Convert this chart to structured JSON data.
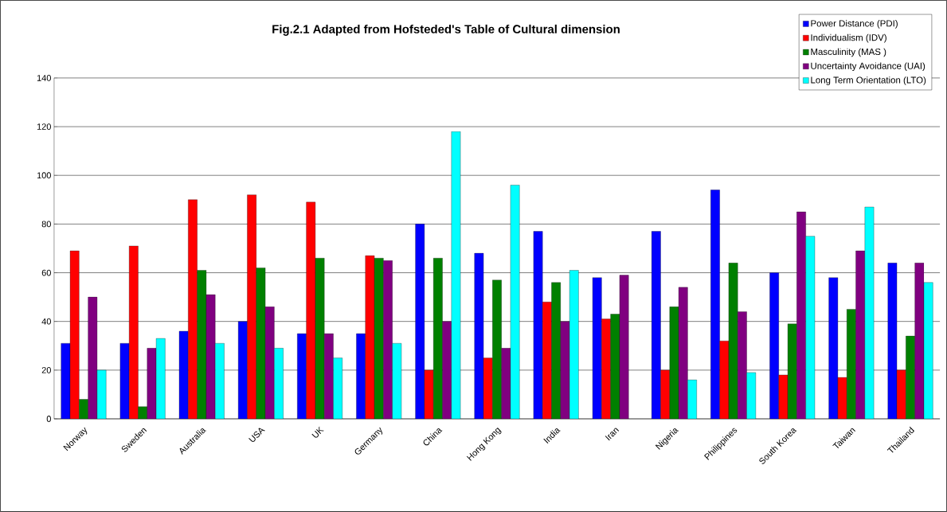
{
  "chart_data": {
    "type": "bar",
    "title": "Fig.2.1    Adapted from Hofsteded's Table of Cultural dimension",
    "categories": [
      "Norway",
      "Sweden",
      "Australia",
      "USA",
      "UK",
      "Germany",
      "China",
      "Hong Kong",
      "India",
      "Iran",
      "Nigeria",
      "Philippines",
      "South Korea",
      "Taiwan",
      "Thailand"
    ],
    "series": [
      {
        "name": "Power Distance (PDI)",
        "color": "#0000ff",
        "values": [
          31,
          31,
          36,
          40,
          35,
          35,
          80,
          68,
          77,
          58,
          77,
          94,
          60,
          58,
          64
        ]
      },
      {
        "name": "Individualism (IDV)",
        "color": "#ff0000",
        "values": [
          69,
          71,
          90,
          92,
          89,
          67,
          20,
          25,
          48,
          41,
          20,
          32,
          18,
          17,
          20
        ]
      },
      {
        "name": "Masculinity (MAS )",
        "color": "#008000",
        "values": [
          8,
          5,
          61,
          62,
          66,
          66,
          66,
          57,
          56,
          43,
          46,
          64,
          39,
          45,
          34
        ]
      },
      {
        "name": "Uncertainty Avoidance (UAI)",
        "color": "#800080",
        "values": [
          50,
          29,
          51,
          46,
          35,
          65,
          40,
          29,
          40,
          59,
          54,
          44,
          85,
          69,
          64
        ]
      },
      {
        "name": "Long Term Orientation (LTO)",
        "color": "#00ffff",
        "values": [
          20,
          33,
          31,
          29,
          25,
          31,
          118,
          96,
          61,
          null,
          16,
          19,
          75,
          87,
          56
        ]
      }
    ],
    "ylim": [
      0,
      140
    ],
    "yticks": [
      0,
      20,
      40,
      60,
      80,
      100,
      120,
      140
    ],
    "grid": "y",
    "legend": "top right"
  }
}
